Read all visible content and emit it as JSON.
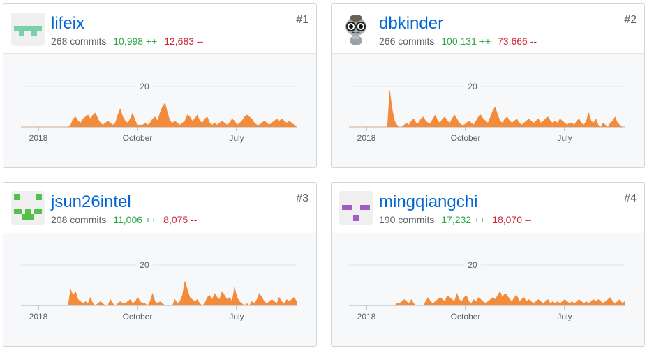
{
  "contributors": [
    {
      "rank": "#1",
      "username": "lifeix",
      "commits": "268 commits",
      "additions": "10,998 ++",
      "deletions": "12,683 --",
      "avatar": "identicon-teal",
      "avatar_color": "#79d1a7",
      "chart_data": {
        "type": "area",
        "gridline": {
          "value": 20,
          "label": "20"
        },
        "x_ticks": [
          "2018",
          "October",
          "July"
        ],
        "ylim": [
          0,
          24
        ],
        "color": "#f48b3b",
        "values": [
          0,
          0,
          0,
          0,
          0,
          0,
          0,
          0,
          0,
          0,
          0,
          0,
          0,
          0,
          0,
          0,
          0,
          0,
          0,
          0,
          1,
          4,
          5,
          3,
          2,
          4,
          5,
          6,
          4,
          6,
          7,
          4,
          2,
          1,
          2,
          3,
          2,
          1,
          2,
          6,
          9,
          5,
          3,
          2,
          4,
          7,
          3,
          1,
          1,
          1,
          2,
          1,
          2,
          4,
          5,
          3,
          7,
          10,
          12,
          7,
          3,
          2,
          3,
          2,
          1,
          2,
          3,
          6,
          5,
          3,
          4,
          6,
          3,
          2,
          4,
          5,
          2,
          1,
          2,
          1,
          2,
          3,
          2,
          1,
          2,
          4,
          3,
          1,
          2,
          3,
          5,
          6,
          5,
          4,
          2,
          1,
          1,
          2,
          3,
          2,
          1,
          2,
          3,
          4,
          3,
          4,
          3,
          2,
          3,
          2,
          1,
          0
        ]
      }
    },
    {
      "rank": "#2",
      "username": "dbkinder",
      "commits": "266 commits",
      "additions": "100,131 ++",
      "deletions": "73,666 --",
      "avatar": "cartoon-avatar",
      "avatar_color": "#9aa3a8",
      "chart_data": {
        "type": "area",
        "gridline": {
          "value": 20,
          "label": "20"
        },
        "x_ticks": [
          "2018",
          "October",
          "July"
        ],
        "ylim": [
          0,
          24
        ],
        "color": "#f48b3b",
        "values": [
          0,
          0,
          0,
          0,
          0,
          0,
          0,
          0,
          0,
          0,
          0,
          0,
          0,
          0,
          0,
          0,
          0,
          18,
          9,
          3,
          1,
          0,
          0,
          1,
          2,
          1,
          3,
          4,
          2,
          2,
          4,
          5,
          3,
          2,
          2,
          4,
          6,
          3,
          2,
          4,
          5,
          3,
          2,
          4,
          6,
          4,
          2,
          1,
          1,
          2,
          3,
          2,
          1,
          3,
          5,
          6,
          4,
          3,
          2,
          5,
          8,
          10,
          6,
          3,
          2,
          4,
          5,
          3,
          2,
          3,
          4,
          2,
          1,
          2,
          3,
          4,
          3,
          2,
          3,
          4,
          2,
          3,
          4,
          5,
          3,
          2,
          3,
          2,
          4,
          3,
          2,
          1,
          2,
          2,
          1,
          3,
          4,
          2,
          1,
          3,
          7,
          3,
          2,
          4,
          1,
          0,
          2,
          1,
          0,
          2,
          3,
          5,
          2,
          1,
          0,
          0
        ]
      }
    },
    {
      "rank": "#3",
      "username": "jsun26intel",
      "commits": "208 commits",
      "additions": "11,006 ++",
      "deletions": "8,075 --",
      "avatar": "identicon-green",
      "avatar_color": "#55c14c",
      "chart_data": {
        "type": "area",
        "gridline": {
          "value": 20,
          "label": "20"
        },
        "x_ticks": [
          "2018",
          "October",
          "July"
        ],
        "ylim": [
          0,
          24
        ],
        "color": "#f48b3b",
        "values": [
          0,
          0,
          0,
          0,
          0,
          0,
          0,
          0,
          0,
          0,
          0,
          0,
          0,
          0,
          0,
          0,
          0,
          0,
          0,
          0,
          8,
          5,
          7,
          3,
          2,
          1,
          2,
          1,
          4,
          1,
          0,
          1,
          2,
          1,
          0,
          0,
          3,
          1,
          0,
          1,
          2,
          1,
          1,
          2,
          3,
          1,
          2,
          4,
          2,
          1,
          1,
          0,
          2,
          6,
          2,
          1,
          2,
          1,
          0,
          0,
          0,
          0,
          3,
          1,
          2,
          5,
          12,
          8,
          4,
          3,
          2,
          3,
          1,
          0,
          1,
          4,
          5,
          3,
          6,
          4,
          3,
          7,
          5,
          3,
          4,
          2,
          9,
          4,
          2,
          1,
          0,
          1,
          0,
          2,
          1,
          3,
          6,
          4,
          2,
          1,
          2,
          3,
          2,
          1,
          4,
          2,
          1,
          3,
          2,
          3,
          4,
          2
        ]
      }
    },
    {
      "rank": "#4",
      "username": "mingqiangchi",
      "commits": "190 commits",
      "additions": "17,232 ++",
      "deletions": "18,070 --",
      "avatar": "identicon-purple",
      "avatar_color": "#a55cc2",
      "chart_data": {
        "type": "area",
        "gridline": {
          "value": 20,
          "label": "20"
        },
        "x_ticks": [
          "2018",
          "October",
          "July"
        ],
        "ylim": [
          0,
          24
        ],
        "color": "#f48b3b",
        "values": [
          0,
          0,
          0,
          0,
          0,
          0,
          0,
          0,
          0,
          0,
          0,
          0,
          0,
          0,
          0,
          0,
          0,
          0,
          0,
          0,
          1,
          1,
          2,
          3,
          2,
          1,
          3,
          1,
          0,
          0,
          0,
          0,
          2,
          4,
          2,
          1,
          2,
          3,
          4,
          3,
          2,
          5,
          4,
          3,
          2,
          6,
          3,
          2,
          4,
          5,
          2,
          1,
          3,
          2,
          4,
          3,
          2,
          1,
          2,
          3,
          4,
          3,
          5,
          7,
          4,
          6,
          5,
          3,
          2,
          4,
          5,
          2,
          3,
          4,
          2,
          3,
          2,
          1,
          2,
          3,
          2,
          1,
          2,
          3,
          1,
          2,
          1,
          2,
          1,
          2,
          3,
          2,
          1,
          2,
          1,
          2,
          3,
          2,
          1,
          2,
          1,
          2,
          3,
          2,
          3,
          2,
          1,
          2,
          3,
          4,
          2,
          1,
          2,
          3,
          1,
          2
        ]
      }
    }
  ]
}
